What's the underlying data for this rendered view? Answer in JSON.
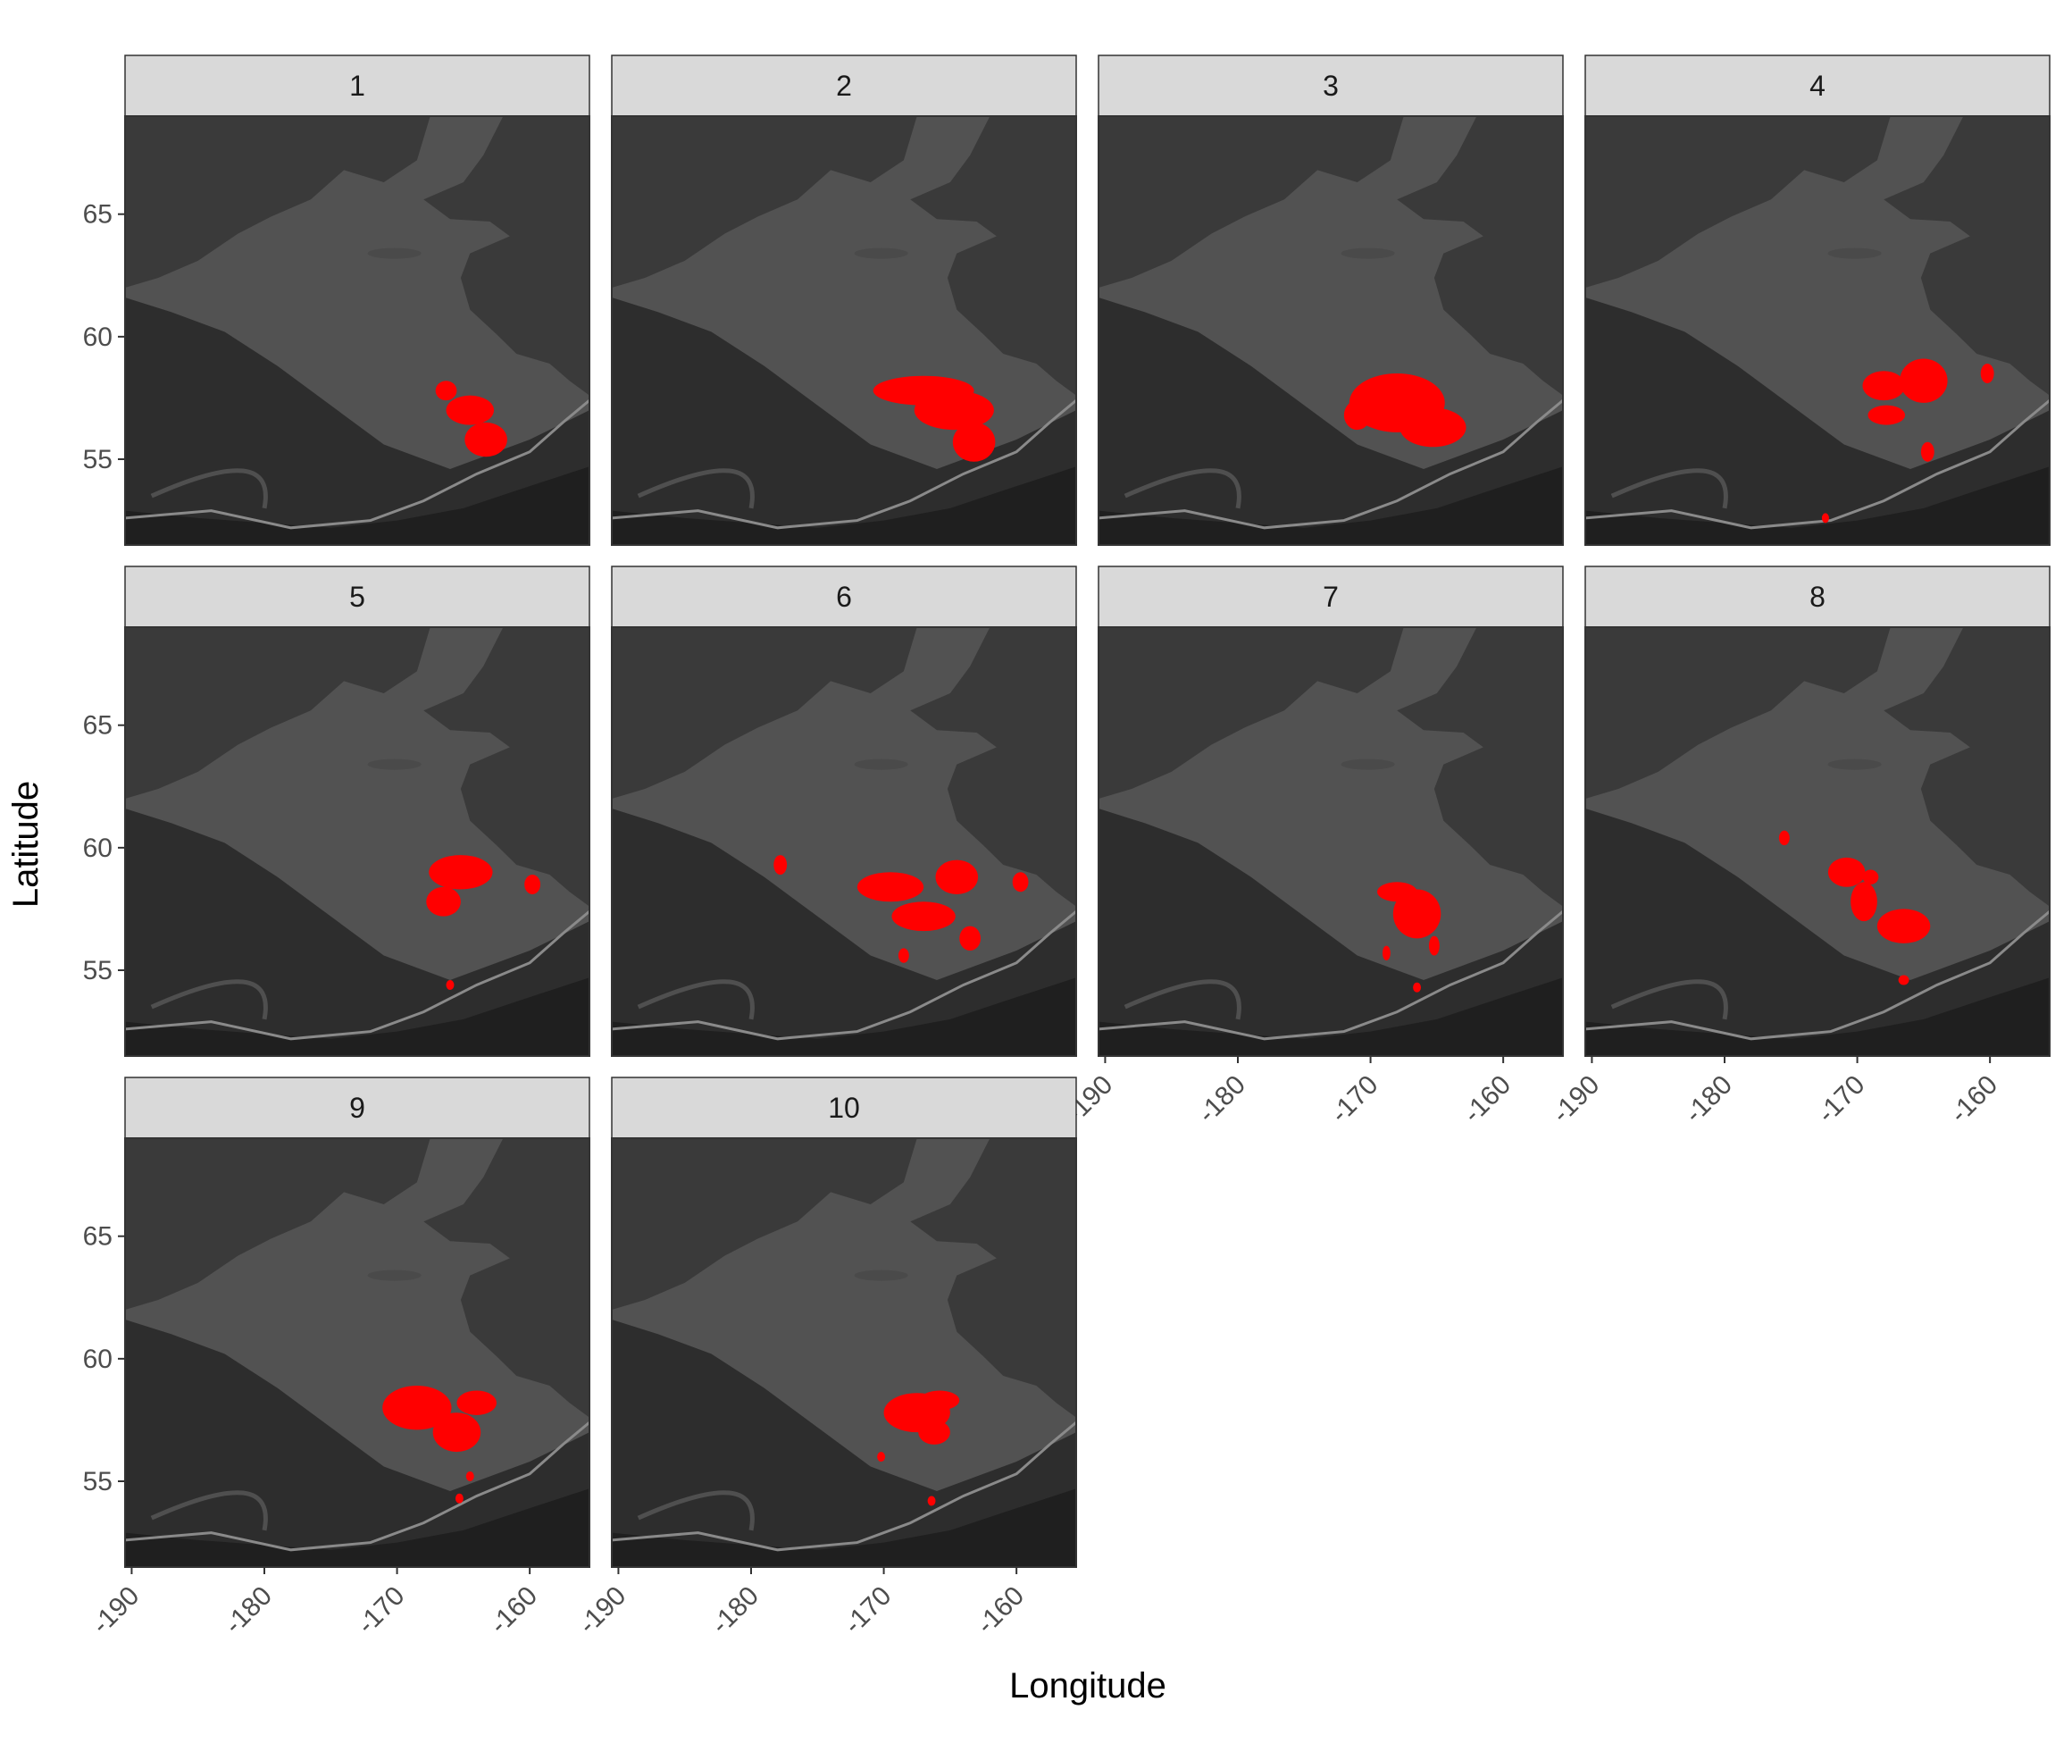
{
  "chart_data": {
    "type": "map",
    "title": "",
    "xlabel": "Longitude",
    "ylabel": "Latitude",
    "xlim": [
      -190.5,
      -155.5
    ],
    "ylim": [
      51.5,
      69
    ],
    "x_ticks": [
      -190,
      -180,
      -170,
      -160
    ],
    "y_ticks": [
      55,
      60,
      65
    ],
    "panel_fill": "#2d2d2d",
    "highlight_color": "#ff0000",
    "panels": [
      {
        "label": "1",
        "regions": [
          {
            "cx": -164.5,
            "cy": 57.0,
            "rx": 1.8,
            "ry": 0.6
          },
          {
            "cx": -163.3,
            "cy": 55.8,
            "rx": 1.6,
            "ry": 0.7
          },
          {
            "cx": -166.3,
            "cy": 57.8,
            "rx": 0.8,
            "ry": 0.4
          }
        ]
      },
      {
        "label": "2",
        "regions": [
          {
            "cx": -167.0,
            "cy": 57.8,
            "rx": 3.8,
            "ry": 0.6
          },
          {
            "cx": -164.7,
            "cy": 57.0,
            "rx": 3.0,
            "ry": 0.8
          },
          {
            "cx": -163.2,
            "cy": 55.7,
            "rx": 1.6,
            "ry": 0.8
          }
        ]
      },
      {
        "label": "3",
        "regions": [
          {
            "cx": -168.0,
            "cy": 57.3,
            "rx": 3.6,
            "ry": 1.2
          },
          {
            "cx": -165.3,
            "cy": 56.3,
            "rx": 2.5,
            "ry": 0.8
          },
          {
            "cx": -171.0,
            "cy": 56.8,
            "rx": 1.0,
            "ry": 0.6
          }
        ]
      },
      {
        "label": "4",
        "regions": [
          {
            "cx": -168.0,
            "cy": 58.0,
            "rx": 1.6,
            "ry": 0.6
          },
          {
            "cx": -165.0,
            "cy": 58.2,
            "rx": 1.8,
            "ry": 0.9
          },
          {
            "cx": -167.8,
            "cy": 56.8,
            "rx": 1.4,
            "ry": 0.4
          },
          {
            "cx": -164.7,
            "cy": 55.3,
            "rx": 0.5,
            "ry": 0.4
          },
          {
            "cx": -160.2,
            "cy": 58.5,
            "rx": 0.5,
            "ry": 0.4
          },
          {
            "cx": -172.4,
            "cy": 52.6,
            "rx": 0.25,
            "ry": 0.2
          }
        ]
      },
      {
        "label": "5",
        "regions": [
          {
            "cx": -165.2,
            "cy": 59.0,
            "rx": 2.4,
            "ry": 0.7
          },
          {
            "cx": -166.5,
            "cy": 57.8,
            "rx": 1.3,
            "ry": 0.6
          },
          {
            "cx": -159.8,
            "cy": 58.5,
            "rx": 0.6,
            "ry": 0.4
          },
          {
            "cx": -166.0,
            "cy": 54.4,
            "rx": 0.3,
            "ry": 0.2
          }
        ]
      },
      {
        "label": "6",
        "regions": [
          {
            "cx": -169.5,
            "cy": 58.4,
            "rx": 2.5,
            "ry": 0.6
          },
          {
            "cx": -164.5,
            "cy": 58.8,
            "rx": 1.6,
            "ry": 0.7
          },
          {
            "cx": -167.0,
            "cy": 57.2,
            "rx": 2.4,
            "ry": 0.6
          },
          {
            "cx": -163.5,
            "cy": 56.3,
            "rx": 0.8,
            "ry": 0.5
          },
          {
            "cx": -177.8,
            "cy": 59.3,
            "rx": 0.5,
            "ry": 0.4
          },
          {
            "cx": -159.7,
            "cy": 58.6,
            "rx": 0.6,
            "ry": 0.4
          },
          {
            "cx": -168.5,
            "cy": 55.6,
            "rx": 0.4,
            "ry": 0.3
          }
        ]
      },
      {
        "label": "7",
        "regions": [
          {
            "cx": -166.5,
            "cy": 57.3,
            "rx": 1.8,
            "ry": 1.0
          },
          {
            "cx": -168.0,
            "cy": 58.2,
            "rx": 1.5,
            "ry": 0.4
          },
          {
            "cx": -165.2,
            "cy": 56.0,
            "rx": 0.4,
            "ry": 0.4
          },
          {
            "cx": -168.8,
            "cy": 55.7,
            "rx": 0.3,
            "ry": 0.3
          },
          {
            "cx": -166.5,
            "cy": 54.3,
            "rx": 0.3,
            "ry": 0.2
          }
        ]
      },
      {
        "label": "8",
        "regions": [
          {
            "cx": -170.8,
            "cy": 59.0,
            "rx": 1.4,
            "ry": 0.6
          },
          {
            "cx": -169.5,
            "cy": 57.8,
            "rx": 1.0,
            "ry": 0.8
          },
          {
            "cx": -166.5,
            "cy": 56.8,
            "rx": 2.0,
            "ry": 0.7
          },
          {
            "cx": -175.5,
            "cy": 60.4,
            "rx": 0.4,
            "ry": 0.3
          },
          {
            "cx": -169.0,
            "cy": 58.8,
            "rx": 0.6,
            "ry": 0.3
          },
          {
            "cx": -166.5,
            "cy": 54.6,
            "rx": 0.4,
            "ry": 0.2
          }
        ]
      },
      {
        "label": "9",
        "regions": [
          {
            "cx": -168.5,
            "cy": 58.0,
            "rx": 2.6,
            "ry": 0.9
          },
          {
            "cx": -165.5,
            "cy": 57.0,
            "rx": 1.8,
            "ry": 0.8
          },
          {
            "cx": -164.0,
            "cy": 58.2,
            "rx": 1.5,
            "ry": 0.5
          },
          {
            "cx": -164.5,
            "cy": 55.2,
            "rx": 0.3,
            "ry": 0.2
          },
          {
            "cx": -165.3,
            "cy": 54.3,
            "rx": 0.3,
            "ry": 0.2
          }
        ]
      },
      {
        "label": "10",
        "regions": [
          {
            "cx": -167.5,
            "cy": 57.8,
            "rx": 2.5,
            "ry": 0.8
          },
          {
            "cx": -165.8,
            "cy": 58.3,
            "rx": 1.5,
            "ry": 0.4
          },
          {
            "cx": -166.2,
            "cy": 57.0,
            "rx": 1.2,
            "ry": 0.5
          },
          {
            "cx": -170.2,
            "cy": 56.0,
            "rx": 0.3,
            "ry": 0.2
          },
          {
            "cx": -166.4,
            "cy": 54.2,
            "rx": 0.3,
            "ry": 0.2
          }
        ]
      }
    ]
  }
}
